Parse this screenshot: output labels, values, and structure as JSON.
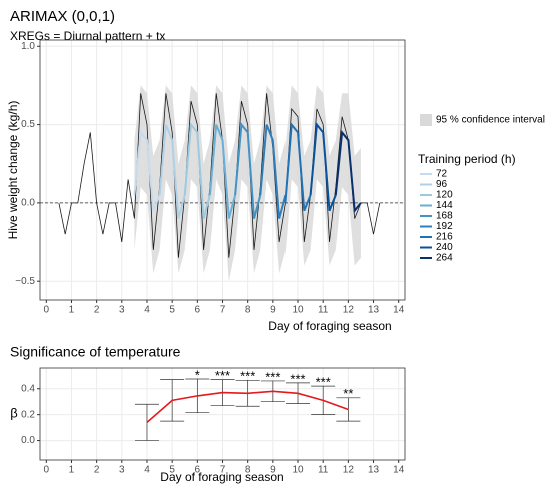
{
  "chart_data": [
    {
      "type": "line",
      "title": "ARIMAX (0,0,1)",
      "subtitle": "XREGs = Diurnal pattern + tx",
      "x_label": "Day of foraging season",
      "y_label": "Hive weight change (kg/h)",
      "xlim": [
        -0.25,
        14.25
      ],
      "xticks": [
        0,
        1,
        2,
        3,
        4,
        5,
        6,
        7,
        8,
        9,
        10,
        11,
        12,
        13,
        14
      ],
      "ylim": [
        -0.62,
        1.04
      ],
      "yticks": [
        {
          "value": -0.5,
          "label": "−0.5"
        },
        {
          "value": 0,
          "label": "0.0"
        },
        {
          "value": 0.5,
          "label": "0.5"
        },
        {
          "value": 1,
          "label": "1.0"
        }
      ],
      "hline": 0,
      "grid": true,
      "band_label": "95 % confidence interval",
      "band_color": "#d9d9d9",
      "legend_title": "Training period (h)",
      "observed": {
        "color": "#1a1a1a",
        "x": [
          0.5,
          0.75,
          1,
          1.25,
          1.5,
          1.75,
          2,
          2.25,
          2.5,
          2.75,
          3,
          3.25,
          3.5,
          3.75,
          4,
          4.25,
          4.5,
          4.75,
          5,
          5.25,
          5.5,
          5.75,
          6,
          6.25,
          6.5,
          6.75,
          7,
          7.25,
          7.5,
          7.75,
          8,
          8.25,
          8.5,
          8.75,
          9,
          9.25,
          9.5,
          9.75,
          10,
          10.25,
          10.5,
          10.75,
          11,
          11.25,
          11.5,
          11.75,
          12,
          12.25,
          12.5,
          12.75,
          13,
          13.25
        ],
        "values": [
          0,
          -0.2,
          0,
          0,
          0.25,
          0.45,
          0,
          -0.2,
          0,
          0,
          -0.25,
          0.15,
          -0.1,
          0.7,
          0.5,
          -0.3,
          0.1,
          0.7,
          0.45,
          -0.35,
          0.05,
          0.65,
          0.5,
          -0.3,
          0.1,
          0.7,
          0.4,
          -0.35,
          0.05,
          0.65,
          0.5,
          -0.3,
          0.1,
          0.7,
          0.35,
          -0.25,
          0,
          0.6,
          0.55,
          -0.25,
          0.05,
          0.6,
          0.5,
          -0.25,
          0.1,
          0.55,
          0.4,
          -0.1,
          0,
          0,
          -0.2,
          0
        ]
      },
      "series": [
        {
          "name": "72",
          "color": "#c6dbef",
          "x": [
            3.5,
            3.75,
            4,
            4.25,
            4.5
          ],
          "values": [
            0.05,
            0.45,
            0.4,
            -0.05,
            0.05
          ],
          "lower": [
            -0.3,
            0.1,
            0.05,
            -0.45,
            -0.3
          ],
          "upper": [
            0.4,
            0.75,
            0.7,
            0.3,
            0.4
          ]
        },
        {
          "name": "96",
          "color": "#afd1e7",
          "x": [
            4.5,
            4.75,
            5,
            5.25,
            5.5
          ],
          "values": [
            0.05,
            0.5,
            0.4,
            -0.1,
            0.05
          ],
          "lower": [
            -0.3,
            0.15,
            0.05,
            -0.45,
            -0.3
          ],
          "upper": [
            0.4,
            0.75,
            0.7,
            0.25,
            0.4
          ]
        },
        {
          "name": "120",
          "color": "#9ecae1",
          "x": [
            5.5,
            5.75,
            6,
            6.25,
            6.5
          ],
          "values": [
            0.05,
            0.5,
            0.45,
            -0.1,
            0.05
          ],
          "lower": [
            -0.3,
            0.15,
            0.1,
            -0.45,
            -0.3
          ],
          "upper": [
            0.4,
            0.75,
            0.7,
            0.25,
            0.4
          ]
        },
        {
          "name": "144",
          "color": "#6baed6",
          "x": [
            6.5,
            6.75,
            7,
            7.25,
            7.5
          ],
          "values": [
            0.05,
            0.5,
            0.4,
            -0.1,
            0.05
          ],
          "lower": [
            -0.3,
            0.15,
            0.05,
            -0.5,
            -0.3
          ],
          "upper": [
            0.4,
            0.75,
            0.7,
            0.25,
            0.4
          ]
        },
        {
          "name": "168",
          "color": "#4292c6",
          "x": [
            7.5,
            7.75,
            8,
            8.25,
            8.5
          ],
          "values": [
            0.05,
            0.5,
            0.45,
            -0.1,
            0.05
          ],
          "lower": [
            -0.3,
            0.15,
            0.1,
            -0.45,
            -0.3
          ],
          "upper": [
            0.4,
            0.75,
            0.7,
            0.25,
            0.4
          ]
        },
        {
          "name": "192",
          "color": "#2f7ebc",
          "x": [
            8.5,
            8.75,
            9,
            9.25,
            9.5
          ],
          "values": [
            0.05,
            0.5,
            0.4,
            -0.1,
            0.05
          ],
          "lower": [
            -0.3,
            0.15,
            0.05,
            -0.45,
            -0.3
          ],
          "upper": [
            0.4,
            0.75,
            0.7,
            0.25,
            0.4
          ]
        },
        {
          "name": "216",
          "color": "#2171b5",
          "x": [
            9.5,
            9.75,
            10,
            10.25,
            10.5
          ],
          "values": [
            0,
            0.5,
            0.45,
            -0.05,
            0.05
          ],
          "lower": [
            -0.35,
            0.15,
            0.1,
            -0.4,
            -0.3
          ],
          "upper": [
            0.35,
            0.75,
            0.7,
            0.3,
            0.4
          ]
        },
        {
          "name": "240",
          "color": "#08519c",
          "x": [
            10.5,
            10.75,
            11,
            11.25,
            11.5
          ],
          "values": [
            0.05,
            0.5,
            0.45,
            -0.05,
            0.05
          ],
          "lower": [
            -0.3,
            0.15,
            0.1,
            -0.4,
            -0.3
          ],
          "upper": [
            0.4,
            0.75,
            0.7,
            0.3,
            0.4
          ]
        },
        {
          "name": "264",
          "color": "#08306b",
          "x": [
            11.5,
            11.75,
            12,
            12.25,
            12.5
          ],
          "values": [
            0.05,
            0.45,
            0.4,
            -0.05,
            0
          ],
          "lower": [
            -0.3,
            0.1,
            0.05,
            -0.4,
            -0.35
          ],
          "upper": [
            0.4,
            0.7,
            0.7,
            0.3,
            0.35
          ]
        }
      ]
    },
    {
      "type": "errorbar",
      "title": "Significance of temperature",
      "x_label": "Day of foraging season",
      "y_label": "β",
      "xlim": [
        -0.25,
        14.25
      ],
      "xticks": [
        0,
        1,
        2,
        3,
        4,
        5,
        6,
        7,
        8,
        9,
        10,
        11,
        12,
        13,
        14
      ],
      "ylim": [
        -0.15,
        0.56
      ],
      "yticks": [
        {
          "value": 0,
          "label": "0.0"
        },
        {
          "value": 0.2,
          "label": "0.2"
        },
        {
          "value": 0.4,
          "label": "0.4"
        }
      ],
      "grid": true,
      "color": "#e41a1c",
      "x": [
        4,
        5,
        6,
        7,
        8,
        9,
        10,
        11,
        12
      ],
      "values": [
        0.14,
        0.31,
        0.345,
        0.37,
        0.365,
        0.38,
        0.365,
        0.31,
        0.24
      ],
      "errors": [
        0.14,
        0.16,
        0.13,
        0.1,
        0.1,
        0.08,
        0.08,
        0.11,
        0.09
      ],
      "significance": [
        null,
        null,
        "*",
        "***",
        "***",
        "***",
        "***",
        "***",
        "**"
      ]
    }
  ]
}
